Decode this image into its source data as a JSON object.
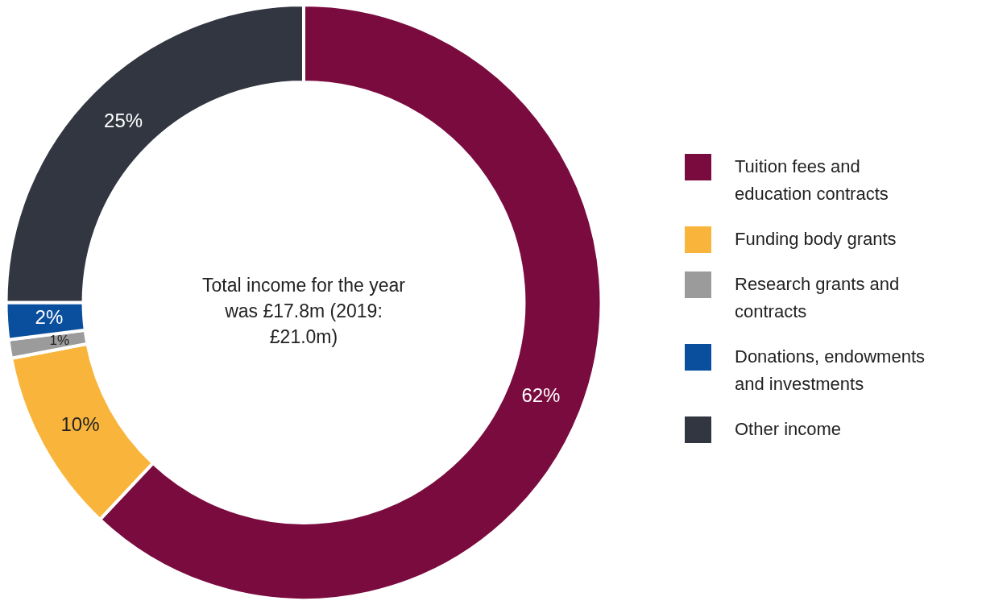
{
  "chart_data": {
    "type": "donut",
    "categories": [
      "Tuition fees and education contracts",
      "Funding body grants",
      "Research grants and contracts",
      "Donations, endowments and investments",
      "Other income"
    ],
    "values": [
      62,
      10,
      1,
      2,
      25
    ],
    "colors": [
      "#7a0b3f",
      "#f9b53b",
      "#9b9b9b",
      "#0a4f9e",
      "#323641"
    ],
    "value_labels": [
      "62%",
      "10%",
      "1%",
      "2%",
      "25%"
    ],
    "legend": "right",
    "annotations": [
      "Total income for the year was £17.8m (2019: £21.0m)"
    ]
  }
}
